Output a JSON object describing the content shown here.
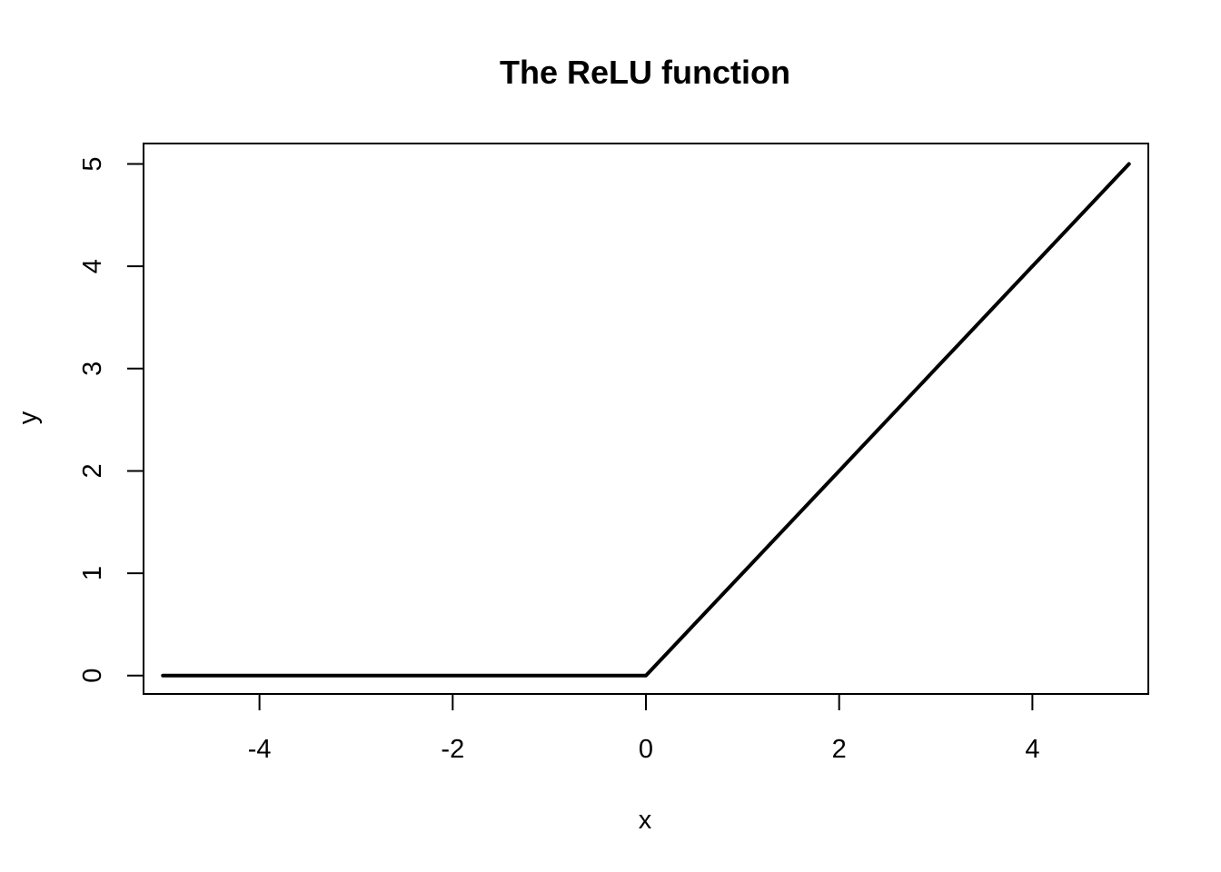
{
  "chart_data": {
    "type": "line",
    "title": "The ReLU function",
    "xlabel": "x",
    "ylabel": "y",
    "xlim": [
      -5.2,
      5.2
    ],
    "ylim": [
      -0.18,
      5.2
    ],
    "x_ticks": [
      -4,
      -2,
      0,
      2,
      4
    ],
    "x_tick_labels": [
      "-4",
      "-2",
      "0",
      "2",
      "4"
    ],
    "y_ticks": [
      0,
      1,
      2,
      3,
      4,
      5
    ],
    "y_tick_labels": [
      "0",
      "1",
      "2",
      "3",
      "4",
      "5"
    ],
    "grid": false,
    "series": [
      {
        "color": "#000000",
        "x": [
          -5,
          -4,
          -3,
          -2,
          -1,
          0,
          1,
          2,
          3,
          4,
          5
        ],
        "y": [
          0,
          0,
          0,
          0,
          0,
          0,
          1,
          2,
          3,
          4,
          5
        ]
      }
    ]
  }
}
